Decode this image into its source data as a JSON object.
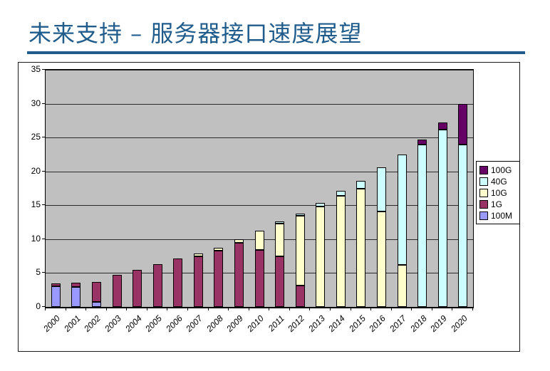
{
  "slide": {
    "title": "未来支持 – 服务器接口速度展望"
  },
  "colors": {
    "title_text": "#1F5C8B",
    "title_rule": "#1F5C8B",
    "plot_background": "#C0C0C0",
    "chart_background": "#FFFFFF",
    "gridline": "#2B2B2B",
    "bar_border": "#000000"
  },
  "chart_data": {
    "type": "bar",
    "stacked": true,
    "title": "",
    "xlabel": "",
    "ylabel": "",
    "ylim": [
      0,
      35
    ],
    "ytick_step": 5,
    "ytick_labels": [
      "0",
      "5",
      "10",
      "15",
      "20",
      "25",
      "30",
      "35"
    ],
    "grid": true,
    "legend_position": "right",
    "legend_order": [
      "100G",
      "40G",
      "10G",
      "1G",
      "100M"
    ],
    "categories": [
      "2000",
      "2001",
      "2002",
      "2003",
      "2004",
      "2005",
      "2006",
      "2007",
      "2008",
      "2009",
      "2010",
      "2011",
      "2012",
      "2013",
      "2014",
      "2015",
      "2016",
      "2017",
      "2018",
      "2019",
      "2020"
    ],
    "series": [
      {
        "name": "100M",
        "color": "#9999FF",
        "values": [
          3.0,
          2.9,
          0.7,
          0,
          0,
          0,
          0,
          0,
          0,
          0,
          0,
          0,
          0,
          0,
          0,
          0,
          0,
          0,
          0,
          0,
          0
        ]
      },
      {
        "name": "1G",
        "color": "#993366",
        "values": [
          0.5,
          0.7,
          3.0,
          4.7,
          5.5,
          6.3,
          7.1,
          7.5,
          8.3,
          9.5,
          8.4,
          7.5,
          3.2,
          0,
          0,
          0,
          0,
          0,
          0,
          0,
          0
        ]
      },
      {
        "name": "10G",
        "color": "#FFFFCC",
        "values": [
          0,
          0,
          0,
          0,
          0,
          0,
          0,
          0.4,
          0.4,
          0.5,
          2.9,
          4.8,
          10.3,
          14.8,
          16.4,
          17.5,
          14.1,
          6.2,
          0,
          0,
          0
        ]
      },
      {
        "name": "40G",
        "color": "#CCFFFF",
        "values": [
          0,
          0,
          0,
          0,
          0,
          0,
          0,
          0,
          0,
          0,
          0,
          0.3,
          0.3,
          0.5,
          0.7,
          1.1,
          6.5,
          16.3,
          24.0,
          26.2,
          24.0
        ]
      },
      {
        "name": "100G",
        "color": "#660066",
        "values": [
          0,
          0,
          0,
          0,
          0,
          0,
          0,
          0,
          0,
          0,
          0,
          0,
          0,
          0,
          0,
          0,
          0,
          0,
          0.7,
          1.0,
          6.0
        ]
      }
    ]
  }
}
